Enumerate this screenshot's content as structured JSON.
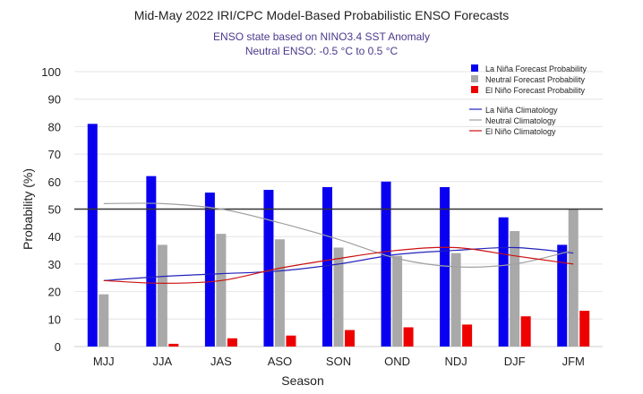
{
  "chart_data": {
    "type": "bar",
    "title": "Mid-May 2022 IRI/CPC Model-Based Probabilistic ENSO Forecasts",
    "subtitle": [
      "ENSO state based on NINO3.4 SST Anomaly",
      "Neutral ENSO: -0.5 °C to 0.5 °C"
    ],
    "xlabel": "Season",
    "ylabel": "Probability (%)",
    "ylim": [
      0,
      100
    ],
    "yticks": [
      "0",
      "10",
      "20",
      "30",
      "40",
      "50",
      "60",
      "70",
      "80",
      "90",
      "100"
    ],
    "grid": true,
    "reference_line": 50,
    "legend_position": "top-right",
    "categories": [
      "MJJ",
      "JJA",
      "JAS",
      "ASO",
      "SON",
      "OND",
      "NDJ",
      "DJF",
      "JFM"
    ],
    "series": [
      {
        "name": "La Niña Forecast Probability",
        "color": "#0a00f0",
        "values": [
          81,
          62,
          56,
          57,
          58,
          60,
          58,
          47,
          37
        ]
      },
      {
        "name": "Neutral Forecast Probability",
        "color": "#a9a9a9",
        "values": [
          19,
          37,
          41,
          39,
          36,
          33,
          34,
          42,
          50
        ]
      },
      {
        "name": "El Niño Forecast Probability",
        "color": "#ee0000",
        "values": [
          0,
          1,
          3,
          4,
          6,
          7,
          8,
          11,
          13
        ]
      }
    ],
    "climatology": [
      {
        "name": "La Niña Climatology",
        "color": "#2222bb",
        "values": [
          24,
          25.5,
          26.5,
          27.5,
          30,
          33.5,
          35,
          36,
          34
        ]
      },
      {
        "name": "Neutral Climatology",
        "color": "#a0a0a0",
        "values": [
          52,
          52,
          50,
          45,
          39,
          32,
          29,
          30,
          35
        ]
      },
      {
        "name": "El Niño Climatology",
        "color": "#cc1111",
        "values": [
          24,
          23,
          24,
          28.5,
          32,
          35,
          36,
          33,
          30
        ]
      }
    ]
  }
}
